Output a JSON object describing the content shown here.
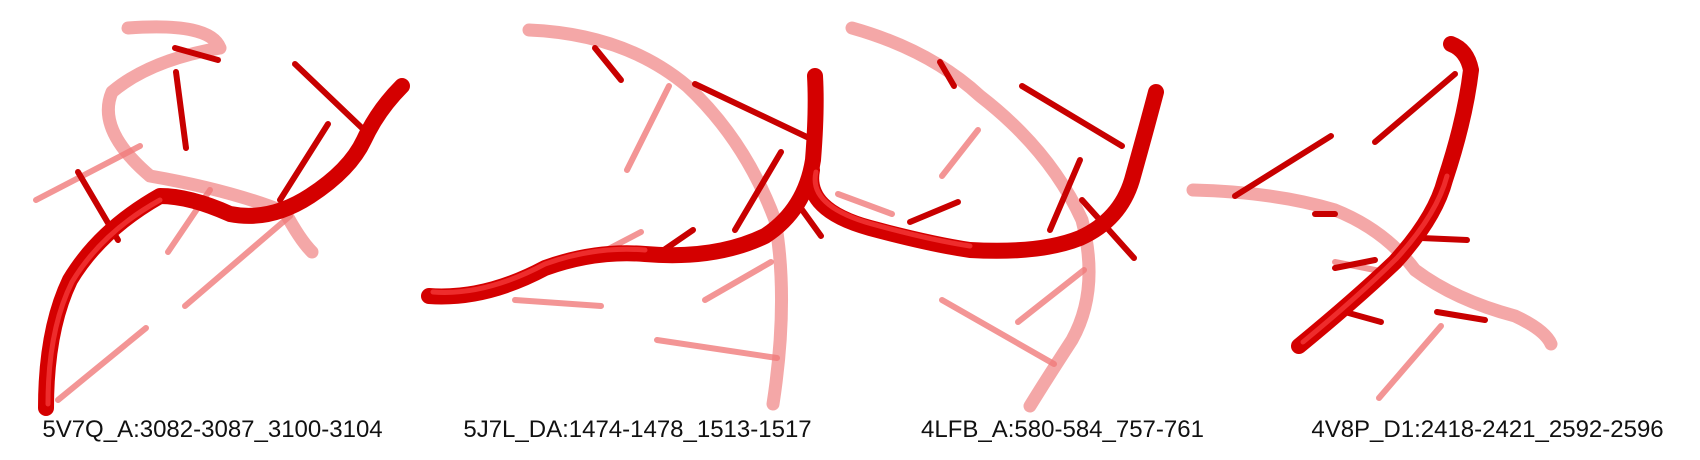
{
  "panels": [
    {
      "label": "5V7Q_A:3082-3087_3100-3104"
    },
    {
      "label": "5J7L_DA:1474-1478_1513-1517"
    },
    {
      "label": "4LFB_A:580-584_757-761"
    },
    {
      "label": "4V8P_D1:2418-2421_2592-2596"
    }
  ],
  "colors": {
    "strand": "#e01010",
    "strand_dark": "#b50000",
    "strand_faded": "#f08080"
  }
}
